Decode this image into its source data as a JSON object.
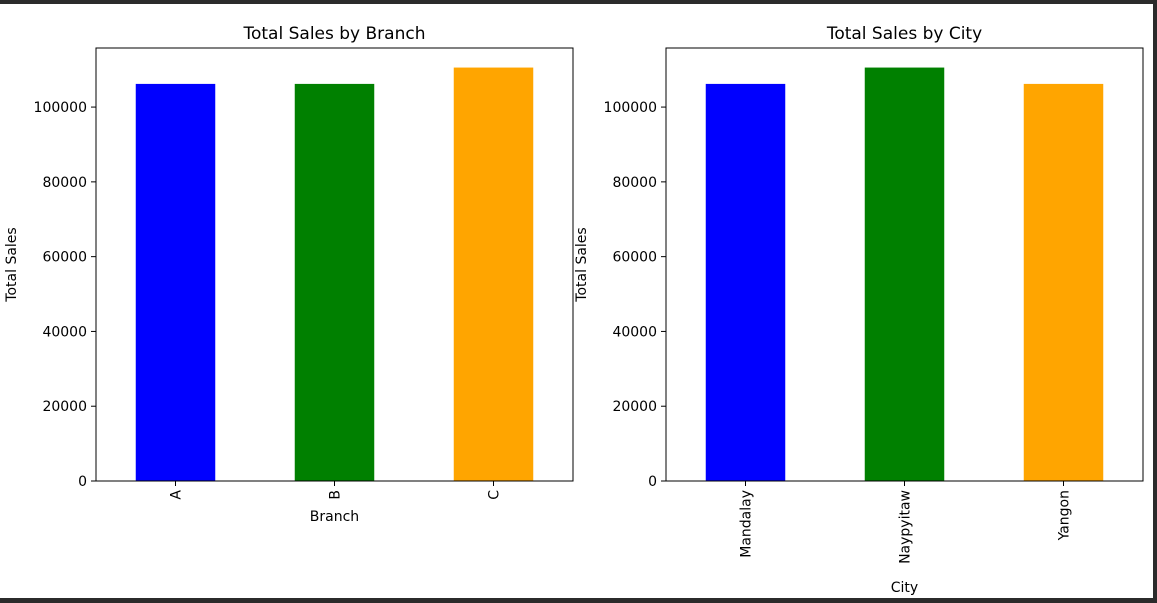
{
  "chart_data": [
    {
      "type": "bar",
      "title": "Total Sales by Branch",
      "xlabel": "Branch",
      "ylabel": "Total Sales",
      "categories": [
        "A",
        "B",
        "C"
      ],
      "values": [
        106200,
        106200,
        110570
      ],
      "colors": [
        "#0000ff",
        "#008000",
        "#ffa500"
      ],
      "ylim": [
        0,
        115800
      ],
      "yticks": [
        0,
        20000,
        40000,
        60000,
        80000,
        100000
      ],
      "ytick_labels": [
        "0",
        "20000",
        "40000",
        "60000",
        "80000",
        "100000"
      ],
      "grid": false,
      "legend": "none"
    },
    {
      "type": "bar",
      "title": "Total Sales by City",
      "xlabel": "City",
      "ylabel": "Total Sales",
      "categories": [
        "Mandalay",
        "Naypyitaw",
        "Yangon"
      ],
      "values": [
        106200,
        110570,
        106200
      ],
      "colors": [
        "#0000ff",
        "#008000",
        "#ffa500"
      ],
      "ylim": [
        0,
        115800
      ],
      "yticks": [
        0,
        20000,
        40000,
        60000,
        80000,
        100000
      ],
      "ytick_labels": [
        "0",
        "20000",
        "40000",
        "60000",
        "80000",
        "100000"
      ],
      "grid": false,
      "legend": "none"
    }
  ]
}
